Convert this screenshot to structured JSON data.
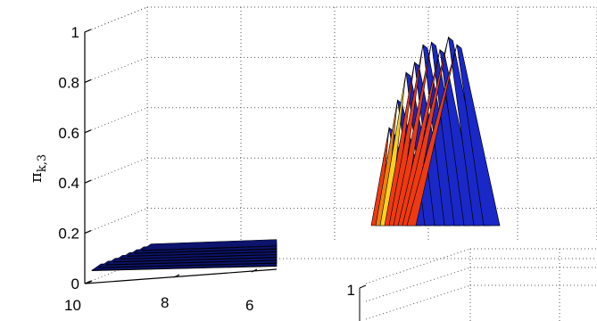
{
  "chart_data": [
    {
      "type": "surface3d",
      "ylabel": "π",
      "ylabel_subscript": "k,3",
      "z_ticks": [
        "0",
        "0.2",
        "0.4",
        "0.6",
        "0.8",
        "1"
      ],
      "z_tick_values": [
        0,
        0.2,
        0.4,
        0.6,
        0.8,
        1
      ],
      "zlim": [
        0,
        1
      ],
      "x_ticks": [
        "10",
        "8",
        "6"
      ],
      "x_tick_values": [
        10,
        8,
        6
      ],
      "grid": true,
      "grid_style": "dotted",
      "series": [
        {
          "x": 10,
          "z": 0.07
        },
        {
          "x": 9.5,
          "z": 0.07
        },
        {
          "x": 9,
          "z": 0.07
        },
        {
          "x": 8.5,
          "z": 0.07
        },
        {
          "x": 8,
          "z": 0.07
        },
        {
          "x": 7.5,
          "z": 0.07
        },
        {
          "x": 7,
          "z": 0.07
        },
        {
          "x": 6.5,
          "z": 0.07
        }
      ],
      "peaks": [
        0.62,
        0.73,
        0.84,
        0.88,
        0.95,
        0.96,
        0.93,
        0.98,
        0.95
      ],
      "colors": {
        "blue": "#1a28c8",
        "dark_blue": "#0c146e",
        "red": "#ee3a12",
        "orange": "#f08010",
        "yellow": "#f8d020"
      }
    },
    {
      "type": "surface3d",
      "z_ticks": [
        "1"
      ],
      "z_tick_values": [
        1
      ],
      "grid": true
    }
  ]
}
